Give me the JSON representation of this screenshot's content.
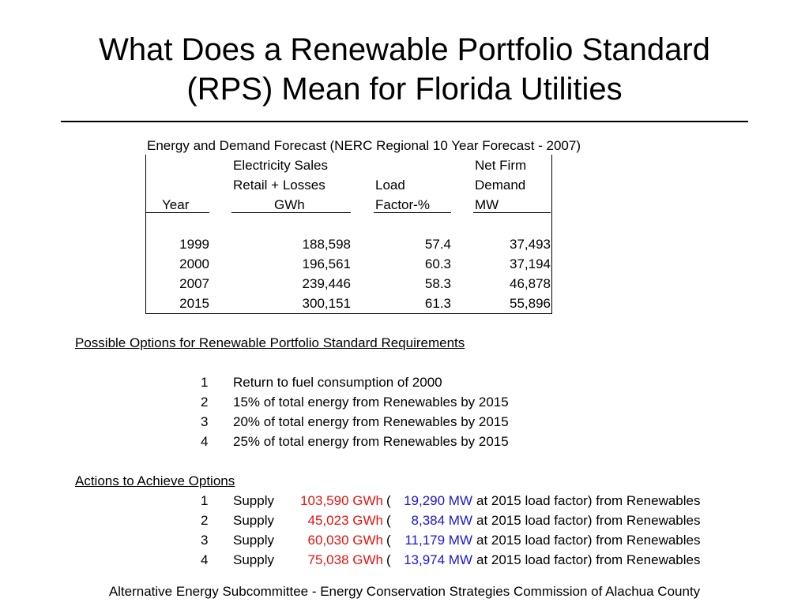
{
  "slide": {
    "title_line1": "What Does a Renewable Portfolio Standard",
    "title_line2": "(RPS) Mean for Florida Utilities",
    "footer": "Alternative Energy Subcommittee - Energy Conservation Strategies Commission of Alachua County"
  },
  "forecast": {
    "caption": "Energy and Demand Forecast (NERC Regional 10 Year Forecast - 2007)",
    "header": {
      "year": "Year",
      "sales_l1": "Electricity Sales",
      "sales_l2": "Retail + Losses",
      "sales_l3": "GWh",
      "load_l1": "Load",
      "load_l2": "Factor-%",
      "demand_l1": "Net Firm",
      "demand_l2": "Demand",
      "demand_l3": "MW"
    },
    "rows": [
      {
        "year": "1999",
        "sales": "188,598",
        "load": "57.4",
        "demand": "37,493"
      },
      {
        "year": "2000",
        "sales": "196,561",
        "load": "60.3",
        "demand": "37,194"
      },
      {
        "year": "2007",
        "sales": "239,446",
        "load": "58.3",
        "demand": "46,878"
      },
      {
        "year": "2015",
        "sales": "300,151",
        "load": "61.3",
        "demand": "55,896"
      }
    ]
  },
  "options": {
    "heading": "Possible Options for Renewable Portfolio Standard Requirements",
    "items": [
      {
        "num": "1",
        "text": "Return to fuel consumption of 2000"
      },
      {
        "num": "2",
        "text": "15% of total energy from Renewables by 2015"
      },
      {
        "num": "3",
        "text": "20% of total energy from Renewables by 2015"
      },
      {
        "num": "4",
        "text": "25% of total energy from Renewables by 2015"
      }
    ]
  },
  "actions": {
    "heading": "Actions to Achieve Options",
    "supply_label": "Supply",
    "open_paren": "(",
    "suffix": "at 2015 load factor) from Renewables",
    "colors": {
      "gwh": "#e8130f",
      "mw": "#1a16d8"
    },
    "items": [
      {
        "num": "1",
        "gwh": "103,590 GWh",
        "mw": "19,290 MW"
      },
      {
        "num": "2",
        "gwh": "45,023 GWh",
        "mw": "8,384 MW"
      },
      {
        "num": "3",
        "gwh": "60,030 GWh",
        "mw": "11,179 MW"
      },
      {
        "num": "4",
        "gwh": "75,038 GWh",
        "mw": "13,974 MW"
      }
    ]
  }
}
